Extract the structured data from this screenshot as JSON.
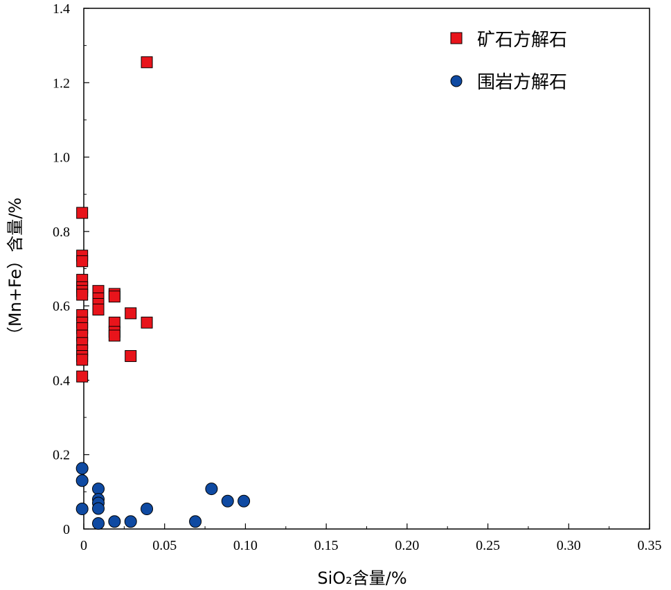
{
  "chart_data": {
    "type": "scatter",
    "title": "",
    "xlabel": "SiO₂含量/%",
    "ylabel": "（Mn+Fe）含量/%",
    "xlim": [
      0,
      0.35
    ],
    "ylim": [
      0,
      1.4
    ],
    "x_ticks": [
      "0",
      "0.05",
      "0.10",
      "0.15",
      "0.20",
      "0.25",
      "0.30",
      "0.35"
    ],
    "y_ticks": [
      "0",
      "0.2",
      "0.4",
      "0.6",
      "0.8",
      "1.0",
      "1.2",
      "1.4"
    ],
    "grid": false,
    "legend_position": "top-right",
    "series": [
      {
        "name": "矿石方解石",
        "marker": "square",
        "color": "#e8141b",
        "points": [
          [
            -0.001,
            0.85
          ],
          [
            -0.001,
            0.735
          ],
          [
            -0.001,
            0.72
          ],
          [
            -0.001,
            0.67
          ],
          [
            -0.001,
            0.65
          ],
          [
            -0.001,
            0.64
          ],
          [
            -0.001,
            0.63
          ],
          [
            -0.001,
            0.575
          ],
          [
            -0.001,
            0.555
          ],
          [
            -0.001,
            0.54
          ],
          [
            -0.001,
            0.52
          ],
          [
            -0.001,
            0.5
          ],
          [
            -0.001,
            0.48
          ],
          [
            -0.001,
            0.465
          ],
          [
            -0.001,
            0.455
          ],
          [
            -0.001,
            0.41
          ],
          [
            0.009,
            0.64
          ],
          [
            0.009,
            0.62
          ],
          [
            0.009,
            0.605
          ],
          [
            0.009,
            0.59
          ],
          [
            0.019,
            0.632
          ],
          [
            0.019,
            0.625
          ],
          [
            0.019,
            0.555
          ],
          [
            0.019,
            0.53
          ],
          [
            0.019,
            0.52
          ],
          [
            0.029,
            0.58
          ],
          [
            0.029,
            0.465
          ],
          [
            0.039,
            0.555
          ],
          [
            0.039,
            1.255
          ]
        ]
      },
      {
        "name": "围岩方解石",
        "marker": "circle",
        "color": "#0f4aa2",
        "points": [
          [
            -0.001,
            0.163
          ],
          [
            -0.001,
            0.13
          ],
          [
            -0.001,
            0.054
          ],
          [
            0.009,
            0.108
          ],
          [
            0.009,
            0.08
          ],
          [
            0.009,
            0.07
          ],
          [
            0.009,
            0.055
          ],
          [
            0.009,
            0.015
          ],
          [
            0.019,
            0.02
          ],
          [
            0.029,
            0.02
          ],
          [
            0.039,
            0.054
          ],
          [
            0.069,
            0.02
          ],
          [
            0.079,
            0.108
          ],
          [
            0.089,
            0.075
          ],
          [
            0.099,
            0.075
          ]
        ]
      }
    ]
  }
}
